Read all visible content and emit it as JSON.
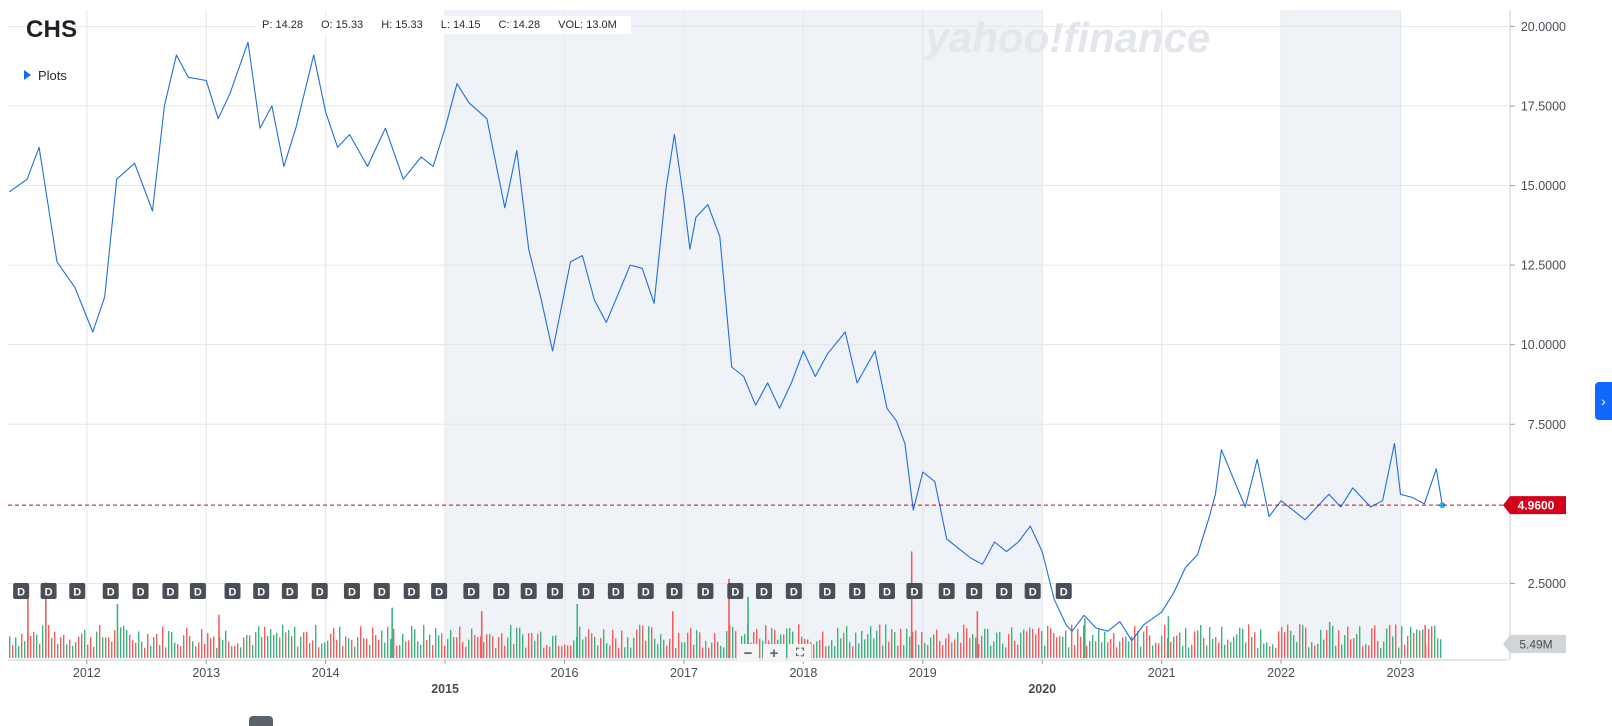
{
  "header": {
    "ticker": "CHS",
    "plots_label": "Plots",
    "ohlc": {
      "p": "P: 14.28",
      "o": "O: 15.33",
      "h": "H: 15.33",
      "l": "L: 14.15",
      "c": "C: 14.28",
      "vol": "VOL: 13.0M"
    },
    "watermark": "yahoo!finance"
  },
  "controls": {
    "zoom_out": "−",
    "zoom_in": "+",
    "fullscreen": "⛶",
    "side_tab": "›"
  },
  "colors": {
    "line": "#1e6fdc",
    "price_badge": "#d5001c",
    "vol_up": "#3fb27f",
    "vol_down": "#f25d5d",
    "shade": "#eff3f8",
    "grid": "#e3e6ea",
    "dividend": "#4a4f57"
  },
  "chart_data": {
    "type": "line",
    "ticker": "CHS",
    "x_ticks": [
      "2012",
      "2013",
      "2014",
      "2015",
      "2016",
      "2017",
      "2018",
      "2019",
      "2020",
      "2021",
      "2022",
      "2023"
    ],
    "x_tick_years": [
      2012,
      2013,
      2014,
      2015,
      2016,
      2017,
      2018,
      2019,
      2020,
      2021,
      2022,
      2023
    ],
    "bold_years": [
      2015,
      2020
    ],
    "shaded_ranges": [
      [
        2015,
        2020
      ],
      [
        2022,
        2023
      ]
    ],
    "x_range": [
      2011.34,
      2023.9
    ],
    "y_ticks": [
      "20.0000",
      "17.5000",
      "15.0000",
      "12.5000",
      "10.0000",
      "7.5000",
      "2.5000"
    ],
    "y_tick_values": [
      20,
      17.5,
      15,
      12.5,
      10,
      7.5,
      2.5
    ],
    "ylim": [
      0,
      20.2
    ],
    "last_price": 4.96,
    "last_price_label": "4.9600",
    "volume_label": "5.49M",
    "series": [
      {
        "x": [
          2011.35,
          2011.5,
          2011.6,
          2011.75,
          2011.9,
          2012.05,
          2012.15,
          2012.25,
          2012.4,
          2012.55,
          2012.65,
          2012.75,
          2012.85,
          2013.0,
          2013.1,
          2013.2,
          2013.35,
          2013.45,
          2013.55,
          2013.65,
          2013.75,
          2013.9,
          2014.0,
          2014.1,
          2014.2,
          2014.35,
          2014.5,
          2014.65,
          2014.8,
          2014.9,
          2015.0,
          2015.1,
          2015.2,
          2015.35,
          2015.5,
          2015.6,
          2015.7,
          2015.8,
          2015.9,
          2016.05,
          2016.15,
          2016.25,
          2016.35,
          2016.45,
          2016.55,
          2016.65,
          2016.75,
          2016.85,
          2016.92,
          2017.0,
          2017.05,
          2017.1,
          2017.2,
          2017.3,
          2017.4,
          2017.5,
          2017.6,
          2017.7,
          2017.8,
          2017.9,
          2018.0,
          2018.1,
          2018.2,
          2018.35,
          2018.45,
          2018.6,
          2018.7,
          2018.78,
          2018.85,
          2018.92,
          2019.0,
          2019.1,
          2019.2,
          2019.3,
          2019.4,
          2019.5,
          2019.6,
          2019.7,
          2019.8,
          2019.9,
          2020.0,
          2020.1,
          2020.2,
          2020.25,
          2020.35,
          2020.45,
          2020.55,
          2020.65,
          2020.75,
          2020.85,
          2021.0,
          2021.1,
          2021.2,
          2021.3,
          2021.4,
          2021.45,
          2021.5,
          2021.6,
          2021.7,
          2021.8,
          2021.9,
          2022.0,
          2022.1,
          2022.2,
          2022.3,
          2022.4,
          2022.5,
          2022.6,
          2022.75,
          2022.85,
          2022.95,
          2023.0,
          2023.1,
          2023.2,
          2023.3,
          2023.35
        ],
        "y": [
          14.8,
          15.2,
          16.2,
          12.6,
          11.8,
          10.4,
          11.5,
          15.2,
          15.7,
          14.2,
          17.5,
          19.1,
          18.4,
          18.3,
          17.1,
          17.9,
          19.5,
          16.8,
          17.5,
          15.6,
          16.8,
          19.1,
          17.3,
          16.2,
          16.6,
          15.6,
          16.8,
          15.2,
          15.9,
          15.6,
          16.8,
          18.2,
          17.6,
          17.1,
          14.3,
          16.1,
          13.0,
          11.5,
          9.8,
          12.6,
          12.8,
          11.4,
          10.7,
          11.6,
          12.5,
          12.4,
          11.3,
          14.9,
          16.6,
          14.5,
          13.0,
          14.0,
          14.4,
          13.4,
          9.3,
          9.0,
          8.1,
          8.8,
          8.0,
          8.8,
          9.8,
          9.0,
          9.7,
          10.4,
          8.8,
          9.8,
          8.0,
          7.6,
          6.9,
          4.8,
          6.0,
          5.7,
          3.9,
          3.6,
          3.3,
          3.1,
          3.8,
          3.5,
          3.8,
          4.3,
          3.5,
          2.0,
          1.2,
          1.0,
          1.5,
          1.1,
          1.0,
          1.3,
          0.7,
          1.2,
          1.6,
          2.2,
          3.0,
          3.4,
          4.6,
          5.3,
          6.7,
          5.8,
          4.9,
          6.4,
          4.6,
          5.1,
          4.8,
          4.5,
          4.9,
          5.3,
          4.9,
          5.5,
          4.9,
          5.1,
          6.9,
          5.3,
          5.2,
          5.0,
          6.1,
          4.96
        ],
        "volume": [
          {
            "x": 2011.5,
            "v": 9.5,
            "up": false
          },
          {
            "x": 2011.65,
            "v": 10.5,
            "up": false
          },
          {
            "x": 2012.25,
            "v": 7.5,
            "up": true
          },
          {
            "x": 2013.1,
            "v": 6.0,
            "up": false
          },
          {
            "x": 2014.55,
            "v": 7.0,
            "up": true
          },
          {
            "x": 2015.3,
            "v": 6.5,
            "up": false
          },
          {
            "x": 2016.1,
            "v": 7.5,
            "up": true
          },
          {
            "x": 2016.9,
            "v": 6.5,
            "up": false
          },
          {
            "x": 2017.37,
            "v": 11.0,
            "up": false
          },
          {
            "x": 2017.53,
            "v": 8.5,
            "up": true
          },
          {
            "x": 2018.9,
            "v": 14.8,
            "up": false
          },
          {
            "x": 2019.45,
            "v": 6.5,
            "up": false
          },
          {
            "x": 2020.35,
            "v": 5.5,
            "up": true
          },
          {
            "x": 2021.05,
            "v": 5.8,
            "up": true
          },
          {
            "x": 2022.4,
            "v": 5.0,
            "up": true
          },
          {
            "x": 2023.2,
            "v": 4.6,
            "up": false
          }
        ]
      }
    ],
    "dividend_markers": {
      "label": "D",
      "x": [
        2011.45,
        2011.68,
        2011.92,
        2012.2,
        2012.45,
        2012.7,
        2012.93,
        2013.22,
        2013.46,
        2013.7,
        2013.95,
        2014.22,
        2014.47,
        2014.72,
        2014.95,
        2015.22,
        2015.47,
        2015.7,
        2015.92,
        2016.18,
        2016.43,
        2016.68,
        2016.92,
        2017.18,
        2017.43,
        2017.67,
        2017.92,
        2018.2,
        2018.45,
        2018.7,
        2018.93,
        2019.2,
        2019.43,
        2019.68,
        2019.92,
        2020.18
      ]
    }
  }
}
